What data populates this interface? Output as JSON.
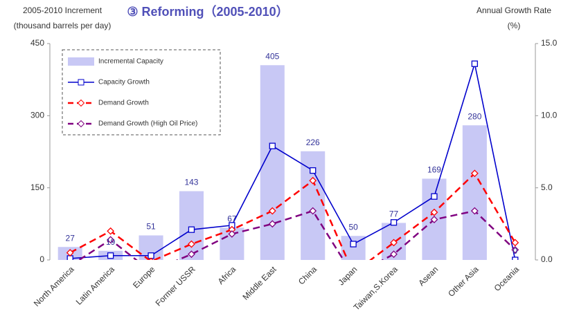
{
  "chart_data": {
    "type": "bar-line",
    "title": "③ Reforming（2005-2010）",
    "y_label": [
      "2005-2010 Increment",
      "(thousand barrels per day)"
    ],
    "y2_label": [
      "Annual Growth Rate",
      "(%)"
    ],
    "categories": [
      "North America",
      "Latin America",
      "Europe",
      "Former USSR",
      "Africa",
      "Middle East",
      "China",
      "Japan",
      "Taiwan,S.Korea",
      "Asean",
      "Other Asia",
      "Oceania"
    ],
    "ylim": [
      0,
      450
    ],
    "yticks": [
      0,
      150,
      300,
      450
    ],
    "y2lim": [
      0,
      15
    ],
    "y2ticks": [
      {
        "value": 0,
        "label": "0.0"
      },
      {
        "value": 5,
        "label": "5.0"
      },
      {
        "value": 10,
        "label": "10.0"
      },
      {
        "value": 15,
        "label": "15.0"
      }
    ],
    "legend": "upper left",
    "series": [
      {
        "name": "Incremental Capacity",
        "type": "bar",
        "color": "#c8c8f5",
        "values": [
          27,
          19,
          51,
          143,
          67,
          405,
          226,
          50,
          77,
          169,
          280,
          0
        ]
      },
      {
        "name": "Capacity Growth",
        "type": "line",
        "axis": "y2",
        "color": "#0000cc",
        "marker": "square",
        "dash": false,
        "values": [
          0.1,
          0.3,
          0.3,
          2.1,
          2.4,
          7.9,
          6.2,
          1.1,
          2.6,
          4.4,
          13.6,
          0.0
        ]
      },
      {
        "name": "Demand Growth",
        "type": "line",
        "axis": "y2",
        "color": "#ff0000",
        "marker": "diamond",
        "dash": true,
        "values": [
          0.5,
          2.0,
          -0.1,
          1.1,
          2.1,
          3.4,
          5.5,
          -0.9,
          1.2,
          3.3,
          6.0,
          1.2
        ]
      },
      {
        "name": "Demand Growth (High Oil Price)",
        "type": "line",
        "axis": "y2",
        "color": "#800080",
        "marker": "diamond",
        "dash": true,
        "values": [
          -0.4,
          1.4,
          -0.8,
          0.4,
          1.8,
          2.5,
          3.4,
          -1.1,
          0.4,
          2.8,
          3.4,
          0.7
        ]
      }
    ]
  }
}
